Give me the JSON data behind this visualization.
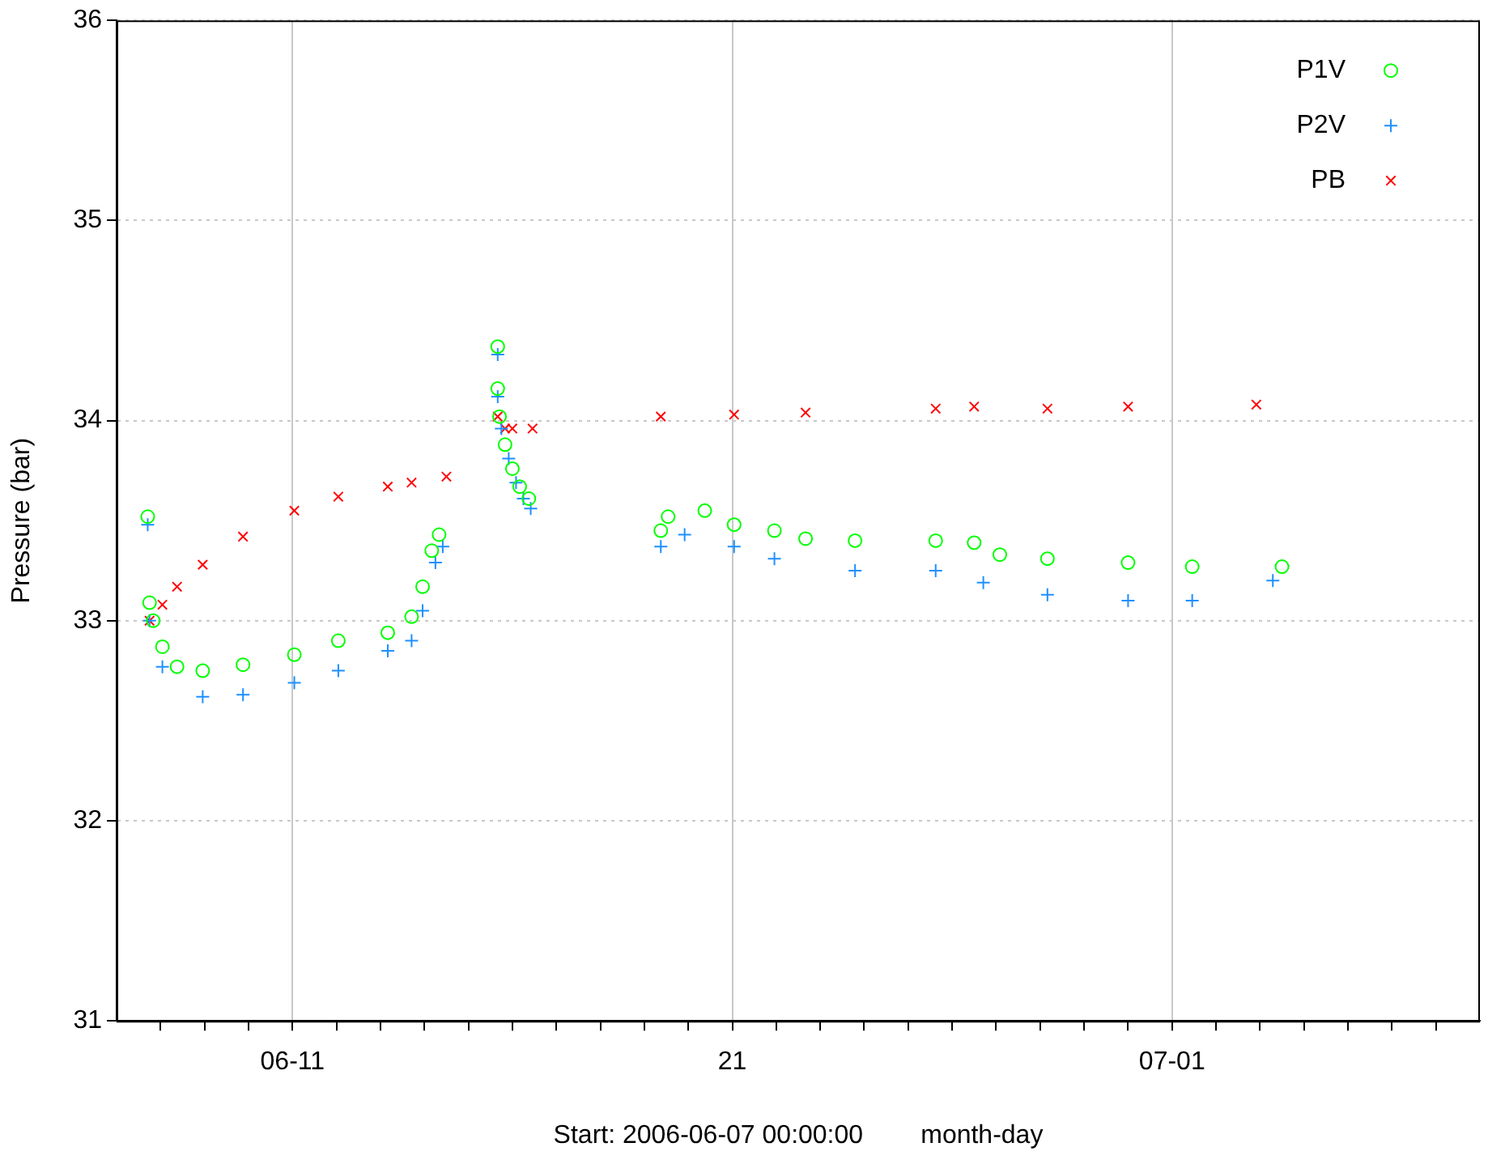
{
  "chart_data": {
    "type": "scatter",
    "xlabel": "Start: 2006-06-07 00:00:00        month-day",
    "ylabel": "Pressure (bar)",
    "xlim": [
      "2006-06-07",
      "2006-07-08"
    ],
    "xticks": [
      {
        "value": "2006-06-08",
        "label": null
      },
      {
        "value": "2006-06-09",
        "label": null
      },
      {
        "value": "2006-06-10",
        "label": null
      },
      {
        "value": "2006-06-11",
        "label": "06-11"
      },
      {
        "value": "2006-06-12",
        "label": null
      },
      {
        "value": "2006-06-13",
        "label": null
      },
      {
        "value": "2006-06-14",
        "label": null
      },
      {
        "value": "2006-06-15",
        "label": null
      },
      {
        "value": "2006-06-16",
        "label": null
      },
      {
        "value": "2006-06-17",
        "label": null
      },
      {
        "value": "2006-06-18",
        "label": null
      },
      {
        "value": "2006-06-19",
        "label": null
      },
      {
        "value": "2006-06-20",
        "label": null
      },
      {
        "value": "2006-06-21",
        "label": "21"
      },
      {
        "value": "2006-06-22",
        "label": null
      },
      {
        "value": "2006-06-23",
        "label": null
      },
      {
        "value": "2006-06-24",
        "label": null
      },
      {
        "value": "2006-06-25",
        "label": null
      },
      {
        "value": "2006-06-26",
        "label": null
      },
      {
        "value": "2006-06-27",
        "label": null
      },
      {
        "value": "2006-06-28",
        "label": null
      },
      {
        "value": "2006-06-29",
        "label": null
      },
      {
        "value": "2006-06-30",
        "label": null
      },
      {
        "value": "2006-07-01",
        "label": "07-01"
      },
      {
        "value": "2006-07-02",
        "label": null
      },
      {
        "value": "2006-07-03",
        "label": null
      },
      {
        "value": "2006-07-04",
        "label": null
      },
      {
        "value": "2006-07-05",
        "label": null
      },
      {
        "value": "2006-07-06",
        "label": null
      },
      {
        "value": "2006-07-07",
        "label": null
      }
    ],
    "ylim": [
      31,
      36
    ],
    "yticks": [
      31,
      32,
      33,
      34,
      35,
      36
    ],
    "grid": true,
    "legend": "top right",
    "series": [
      {
        "name": "P1V",
        "color": "#00ff00",
        "marker": "circle",
        "x": [
          "2006-06-07T17:00",
          "2006-06-07T18:00",
          "2006-06-07T20:00",
          "2006-06-08T01:00",
          "2006-06-08T09:00",
          "2006-06-08T23:00",
          "2006-06-09T21:00",
          "2006-06-11T01:00",
          "2006-06-12T01:00",
          "2006-06-13T04:00",
          "2006-06-13T17:00",
          "2006-06-13T23:00",
          "2006-06-14T04:00",
          "2006-06-14T08:00",
          "2006-06-15T16:00",
          "2006-06-15T16:00",
          "2006-06-15T17:00",
          "2006-06-15T20:00",
          "2006-06-16T00:00",
          "2006-06-16T04:00",
          "2006-06-16T09:00",
          "2006-06-19T09:00",
          "2006-06-19T13:00",
          "2006-06-20T09:00",
          "2006-06-21T01:00",
          "2006-06-21T23:00",
          "2006-06-22T16:00",
          "2006-06-23T19:00",
          "2006-06-25T15:00",
          "2006-06-26T12:00",
          "2006-06-27T02:00",
          "2006-06-28T04:00",
          "2006-06-30T00:00",
          "2006-07-01T11:00",
          "2006-07-03T12:00"
        ],
        "values": [
          33.52,
          33.09,
          33.0,
          32.87,
          32.77,
          32.75,
          32.78,
          32.83,
          32.9,
          32.94,
          33.02,
          33.17,
          33.35,
          33.43,
          34.37,
          34.16,
          34.02,
          33.88,
          33.76,
          33.67,
          33.61,
          33.45,
          33.52,
          33.55,
          33.48,
          33.45,
          33.41,
          33.4,
          33.4,
          33.39,
          33.33,
          33.31,
          33.29,
          33.27,
          33.27
        ]
      },
      {
        "name": "P2V",
        "color": "#1e90ff",
        "marker": "cross",
        "x": [
          "2006-06-07T17:00",
          "2006-06-07T18:00",
          "2006-06-08T01:00",
          "2006-06-08T23:00",
          "2006-06-09T21:00",
          "2006-06-11T01:00",
          "2006-06-12T01:00",
          "2006-06-13T04:00",
          "2006-06-13T17:00",
          "2006-06-13T23:00",
          "2006-06-14T06:00",
          "2006-06-14T10:00",
          "2006-06-15T16:00",
          "2006-06-15T16:00",
          "2006-06-15T18:00",
          "2006-06-15T22:00",
          "2006-06-16T02:00",
          "2006-06-16T06:00",
          "2006-06-16T10:00",
          "2006-06-19T09:00",
          "2006-06-19T22:00",
          "2006-06-21T01:00",
          "2006-06-21T23:00",
          "2006-06-23T19:00",
          "2006-06-25T15:00",
          "2006-06-26T17:00",
          "2006-06-28T04:00",
          "2006-06-30T00:00",
          "2006-07-01T11:00",
          "2006-07-03T07:00"
        ],
        "values": [
          33.48,
          33.0,
          32.77,
          32.62,
          32.63,
          32.69,
          32.75,
          32.85,
          32.9,
          33.05,
          33.29,
          33.37,
          34.33,
          34.12,
          33.96,
          33.81,
          33.69,
          33.61,
          33.56,
          33.37,
          33.43,
          33.37,
          33.31,
          33.25,
          33.25,
          33.19,
          33.13,
          33.1,
          33.1,
          33.2
        ]
      },
      {
        "name": "PB",
        "color": "#ff0000",
        "marker": "x",
        "x": [
          "2006-06-07T18:00",
          "2006-06-08T01:00",
          "2006-06-08T09:00",
          "2006-06-08T23:00",
          "2006-06-09T21:00",
          "2006-06-11T01:00",
          "2006-06-12T01:00",
          "2006-06-13T04:00",
          "2006-06-13T17:00",
          "2006-06-14T12:00",
          "2006-06-15T16:00",
          "2006-06-15T17:00",
          "2006-06-15T20:00",
          "2006-06-16T00:00",
          "2006-06-16T11:00",
          "2006-06-19T09:00",
          "2006-06-21T01:00",
          "2006-06-22T16:00",
          "2006-06-25T15:00",
          "2006-06-26T12:00",
          "2006-06-28T04:00",
          "2006-06-30T00:00",
          "2006-07-02T22:00"
        ],
        "values": [
          33.0,
          33.08,
          33.17,
          33.28,
          33.42,
          33.55,
          33.62,
          33.67,
          33.69,
          33.72,
          34.02,
          null,
          33.96,
          33.96,
          33.96,
          34.02,
          34.03,
          34.04,
          34.06,
          34.07,
          34.06,
          34.07,
          34.08
        ]
      }
    ]
  }
}
